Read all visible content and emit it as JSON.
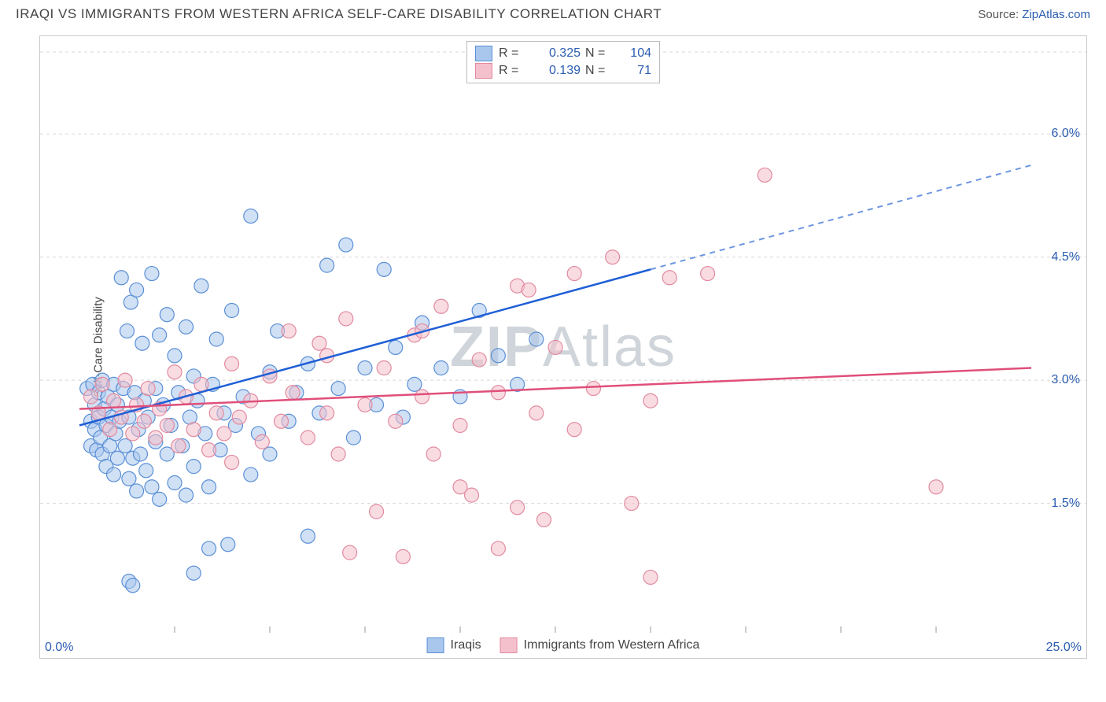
{
  "title": "IRAQI VS IMMIGRANTS FROM WESTERN AFRICA SELF-CARE DISABILITY CORRELATION CHART",
  "source_prefix": "Source: ",
  "source_link": "ZipAtlas.com",
  "ylabel": "Self-Care Disability",
  "watermark_bold": "ZIP",
  "watermark_rest": "Atlas",
  "chart": {
    "type": "scatter",
    "background_color": "#ffffff",
    "grid_color": "#d8d8d8",
    "grid_dash": "4 4",
    "border_color": "#c9c9c9",
    "xlim": [
      0,
      25
    ],
    "ylim": [
      0,
      7.0
    ],
    "x_corner_labels": [
      "0.0%",
      "25.0%"
    ],
    "y_ticks": [
      1.5,
      3.0,
      4.5,
      6.0
    ],
    "y_tick_labels": [
      "1.5%",
      "3.0%",
      "4.5%",
      "6.0%"
    ],
    "x_ticks_minor": [
      2.5,
      5,
      7.5,
      10,
      12.5,
      15,
      17.5,
      20,
      22.5
    ],
    "marker_radius": 9,
    "marker_opacity": 0.55,
    "legend_bottom": [
      {
        "label": "Iraqis",
        "fill": "#a9c7ec",
        "stroke": "#5a8fd6"
      },
      {
        "label": "Immigrants from Western Africa",
        "fill": "#f4c0cb",
        "stroke": "#e28aa0"
      }
    ],
    "legend_top": [
      {
        "swatch_fill": "#a9c7ec",
        "swatch_stroke": "#5a8fd6",
        "r_label": "R =",
        "r": "0.325",
        "n_label": "N =",
        "n": "104"
      },
      {
        "swatch_fill": "#f4c0cb",
        "swatch_stroke": "#e28aa0",
        "r_label": "R =",
        "r": "0.139",
        "n_label": "N =",
        "n": "71"
      }
    ],
    "series": [
      {
        "name": "iraqis",
        "fill": "#a9c7ec",
        "stroke": "#5a8fd6",
        "trend": {
          "solid": {
            "x1": 0.0,
            "y1": 2.45,
            "x2": 15.0,
            "y2": 4.35,
            "color": "#1f5fd6",
            "width": 2.5
          },
          "dashed": {
            "x1": 15.0,
            "y1": 4.35,
            "x2": 25.0,
            "y2": 5.62,
            "color": "#6d97e0",
            "width": 2,
            "dash": "7 6"
          }
        },
        "points": [
          [
            0.2,
            2.9
          ],
          [
            0.3,
            2.5
          ],
          [
            0.3,
            2.2
          ],
          [
            0.35,
            2.95
          ],
          [
            0.4,
            2.7
          ],
          [
            0.4,
            2.4
          ],
          [
            0.45,
            2.15
          ],
          [
            0.5,
            2.85
          ],
          [
            0.5,
            2.55
          ],
          [
            0.55,
            2.3
          ],
          [
            0.6,
            3.0
          ],
          [
            0.6,
            2.1
          ],
          [
            0.65,
            2.65
          ],
          [
            0.7,
            2.45
          ],
          [
            0.7,
            1.95
          ],
          [
            0.75,
            2.8
          ],
          [
            0.8,
            2.2
          ],
          [
            0.85,
            2.55
          ],
          [
            0.9,
            1.85
          ],
          [
            0.9,
            2.95
          ],
          [
            0.95,
            2.35
          ],
          [
            1.0,
            2.7
          ],
          [
            1.0,
            2.05
          ],
          [
            1.05,
            2.5
          ],
          [
            1.1,
            4.25
          ],
          [
            1.15,
            2.9
          ],
          [
            1.2,
            2.2
          ],
          [
            1.25,
            3.6
          ],
          [
            1.3,
            1.8
          ],
          [
            1.3,
            2.55
          ],
          [
            1.35,
            3.95
          ],
          [
            1.4,
            2.05
          ],
          [
            1.45,
            2.85
          ],
          [
            1.5,
            4.1
          ],
          [
            1.5,
            1.65
          ],
          [
            1.55,
            2.4
          ],
          [
            1.6,
            2.1
          ],
          [
            1.65,
            3.45
          ],
          [
            1.7,
            2.75
          ],
          [
            1.75,
            1.9
          ],
          [
            1.8,
            2.55
          ],
          [
            1.9,
            1.7
          ],
          [
            1.9,
            4.3
          ],
          [
            2.0,
            2.9
          ],
          [
            2.0,
            2.25
          ],
          [
            2.1,
            3.55
          ],
          [
            2.1,
            1.55
          ],
          [
            2.2,
            2.7
          ],
          [
            2.3,
            2.1
          ],
          [
            2.3,
            3.8
          ],
          [
            2.4,
            2.45
          ],
          [
            2.5,
            1.75
          ],
          [
            2.5,
            3.3
          ],
          [
            2.6,
            2.85
          ],
          [
            2.7,
            2.2
          ],
          [
            2.8,
            3.65
          ],
          [
            2.8,
            1.6
          ],
          [
            2.9,
            2.55
          ],
          [
            3.0,
            3.05
          ],
          [
            3.0,
            1.95
          ],
          [
            3.1,
            2.75
          ],
          [
            3.2,
            4.15
          ],
          [
            3.3,
            2.35
          ],
          [
            3.4,
            1.7
          ],
          [
            3.4,
            0.95
          ],
          [
            3.5,
            2.95
          ],
          [
            3.6,
            3.5
          ],
          [
            3.7,
            2.15
          ],
          [
            3.8,
            2.6
          ],
          [
            3.9,
            1.0
          ],
          [
            4.0,
            3.85
          ],
          [
            4.1,
            2.45
          ],
          [
            4.3,
            2.8
          ],
          [
            4.5,
            5.0
          ],
          [
            4.5,
            1.85
          ],
          [
            4.7,
            2.35
          ],
          [
            5.0,
            3.1
          ],
          [
            5.0,
            2.1
          ],
          [
            5.2,
            3.6
          ],
          [
            5.5,
            2.5
          ],
          [
            5.7,
            2.85
          ],
          [
            6.0,
            1.1
          ],
          [
            6.0,
            3.2
          ],
          [
            6.3,
            2.6
          ],
          [
            6.5,
            4.4
          ],
          [
            6.8,
            2.9
          ],
          [
            7.0,
            4.65
          ],
          [
            7.2,
            2.3
          ],
          [
            7.5,
            3.15
          ],
          [
            7.8,
            2.7
          ],
          [
            8.0,
            4.35
          ],
          [
            8.3,
            3.4
          ],
          [
            8.5,
            2.55
          ],
          [
            8.8,
            2.95
          ],
          [
            9.0,
            3.7
          ],
          [
            9.5,
            3.15
          ],
          [
            10.0,
            2.8
          ],
          [
            10.5,
            3.85
          ],
          [
            11.0,
            3.3
          ],
          [
            11.5,
            2.95
          ],
          [
            12.0,
            3.5
          ],
          [
            1.3,
            0.55
          ],
          [
            1.4,
            0.5
          ],
          [
            3.0,
            0.65
          ]
        ]
      },
      {
        "name": "immigrants_western_africa",
        "fill": "#f4c0cb",
        "stroke": "#e28aa0",
        "trend": {
          "solid": {
            "x1": 0.0,
            "y1": 2.65,
            "x2": 25.0,
            "y2": 3.15,
            "color": "#e04f7a",
            "width": 2.5
          }
        },
        "points": [
          [
            0.3,
            2.8
          ],
          [
            0.5,
            2.6
          ],
          [
            0.6,
            2.95
          ],
          [
            0.8,
            2.4
          ],
          [
            0.9,
            2.75
          ],
          [
            1.1,
            2.55
          ],
          [
            1.2,
            3.0
          ],
          [
            1.4,
            2.35
          ],
          [
            1.5,
            2.7
          ],
          [
            1.7,
            2.5
          ],
          [
            1.8,
            2.9
          ],
          [
            2.0,
            2.3
          ],
          [
            2.1,
            2.65
          ],
          [
            2.3,
            2.45
          ],
          [
            2.5,
            3.1
          ],
          [
            2.6,
            2.2
          ],
          [
            2.8,
            2.8
          ],
          [
            3.0,
            2.4
          ],
          [
            3.2,
            2.95
          ],
          [
            3.4,
            2.15
          ],
          [
            3.6,
            2.6
          ],
          [
            3.8,
            2.35
          ],
          [
            4.0,
            3.2
          ],
          [
            4.2,
            2.55
          ],
          [
            4.5,
            2.75
          ],
          [
            4.8,
            2.25
          ],
          [
            5.0,
            3.05
          ],
          [
            5.3,
            2.5
          ],
          [
            5.6,
            2.85
          ],
          [
            6.0,
            2.3
          ],
          [
            6.3,
            3.45
          ],
          [
            6.5,
            2.6
          ],
          [
            6.8,
            2.1
          ],
          [
            7.0,
            3.75
          ],
          [
            7.1,
            0.9
          ],
          [
            7.5,
            2.7
          ],
          [
            7.8,
            1.4
          ],
          [
            8.0,
            3.15
          ],
          [
            8.3,
            2.5
          ],
          [
            8.5,
            0.85
          ],
          [
            8.8,
            3.55
          ],
          [
            9.0,
            2.8
          ],
          [
            9.3,
            2.1
          ],
          [
            9.5,
            3.9
          ],
          [
            10.0,
            2.45
          ],
          [
            10.3,
            1.6
          ],
          [
            10.5,
            3.25
          ],
          [
            11.0,
            0.95
          ],
          [
            11.0,
            2.85
          ],
          [
            11.5,
            4.15
          ],
          [
            11.5,
            1.45
          ],
          [
            12.0,
            2.6
          ],
          [
            12.2,
            1.3
          ],
          [
            12.5,
            3.4
          ],
          [
            13.0,
            2.4
          ],
          [
            13.0,
            4.3
          ],
          [
            13.5,
            2.9
          ],
          [
            14.0,
            4.5
          ],
          [
            14.5,
            1.5
          ],
          [
            15.0,
            2.75
          ],
          [
            15.0,
            0.6
          ],
          [
            15.5,
            4.25
          ],
          [
            16.5,
            4.3
          ],
          [
            18.0,
            5.5
          ],
          [
            22.5,
            1.7
          ],
          [
            11.8,
            4.1
          ],
          [
            9.0,
            3.6
          ],
          [
            6.5,
            3.3
          ],
          [
            5.5,
            3.6
          ],
          [
            4.0,
            2.0
          ],
          [
            10.0,
            1.7
          ]
        ]
      }
    ]
  }
}
